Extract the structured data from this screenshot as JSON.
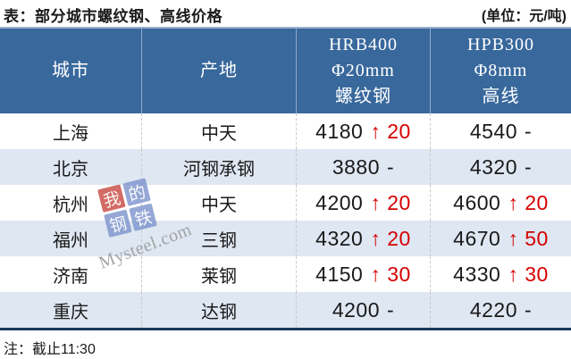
{
  "title": "表：部分城市螺纹钢、高线价格",
  "unit_label": "(单位：元/吨)",
  "footer_note": "注：截止11:30",
  "watermark": {
    "tiles": [
      "我",
      "的",
      "钢",
      "铁"
    ],
    "domain": "Mysteel.com"
  },
  "colors": {
    "header_bg": "#38689C",
    "header_divider": "#93A9C7",
    "row_alt_bg": "#DEE7F2",
    "body_divider": "#C9C9C9",
    "bottom_line": "#17375E",
    "up_red": "#D60000",
    "text_dark": "#1A1A1A"
  },
  "table": {
    "columns": [
      {
        "lines": [
          "城市"
        ]
      },
      {
        "lines": [
          "产地"
        ]
      },
      {
        "lines": [
          "HRB400",
          "Φ20mm",
          "螺纹钢"
        ]
      },
      {
        "lines": [
          "HPB300",
          "Φ8mm",
          "高线"
        ]
      }
    ],
    "rows": [
      {
        "city": "上海",
        "origin": "中天",
        "rebar_price": "4180",
        "rebar_change": "↑ 20",
        "rebar_change_color": "#D60000",
        "wire_price": "4540",
        "wire_change": "-",
        "wire_change_color": "#1A1A1A"
      },
      {
        "city": "北京",
        "origin": "河钢承钢",
        "rebar_price": "3880",
        "rebar_change": "-",
        "rebar_change_color": "#1A1A1A",
        "wire_price": "4320",
        "wire_change": "-",
        "wire_change_color": "#1A1A1A"
      },
      {
        "city": "杭州",
        "origin": "中天",
        "rebar_price": "4200",
        "rebar_change": "↑ 20",
        "rebar_change_color": "#D60000",
        "wire_price": "4600",
        "wire_change": "↑ 20",
        "wire_change_color": "#D60000"
      },
      {
        "city": "福州",
        "origin": "三钢",
        "rebar_price": "4320",
        "rebar_change": "↑ 20",
        "rebar_change_color": "#D60000",
        "wire_price": "4670",
        "wire_change": "↑ 50",
        "wire_change_color": "#D60000"
      },
      {
        "city": "济南",
        "origin": "莱钢",
        "rebar_price": "4150",
        "rebar_change": "↑ 30",
        "rebar_change_color": "#D60000",
        "wire_price": "4330",
        "wire_change": "↑ 30",
        "wire_change_color": "#D60000"
      },
      {
        "city": "重庆",
        "origin": "达钢",
        "rebar_price": "4200",
        "rebar_change": "-",
        "rebar_change_color": "#1A1A1A",
        "wire_price": "4220",
        "wire_change": "-",
        "wire_change_color": "#1A1A1A"
      }
    ]
  },
  "chart_data": {
    "type": "table",
    "title": "表：部分城市螺纹钢、高线价格",
    "unit": "元/吨",
    "note": "截止11:30",
    "columns": [
      "城市",
      "产地",
      "HRB400 Φ20mm 螺纹钢",
      "HPB300 Φ8mm 高线"
    ],
    "rows": [
      [
        "上海",
        "中天",
        "4180 ↑20",
        "4540 -"
      ],
      [
        "北京",
        "河钢承钢",
        "3880 -",
        "4320 -"
      ],
      [
        "杭州",
        "中天",
        "4200 ↑20",
        "4600 ↑20"
      ],
      [
        "福州",
        "三钢",
        "4320 ↑20",
        "4670 ↑50"
      ],
      [
        "济南",
        "莱钢",
        "4150 ↑30",
        "4330 ↑30"
      ],
      [
        "重庆",
        "达钢",
        "4200 -",
        "4220 -"
      ]
    ],
    "rebar_values": [
      4180,
      3880,
      4200,
      4320,
      4150,
      4200
    ],
    "rebar_changes": [
      20,
      0,
      20,
      20,
      30,
      0
    ],
    "wire_values": [
      4540,
      4320,
      4600,
      4670,
      4330,
      4220
    ],
    "wire_changes": [
      0,
      0,
      20,
      50,
      30,
      0
    ]
  }
}
